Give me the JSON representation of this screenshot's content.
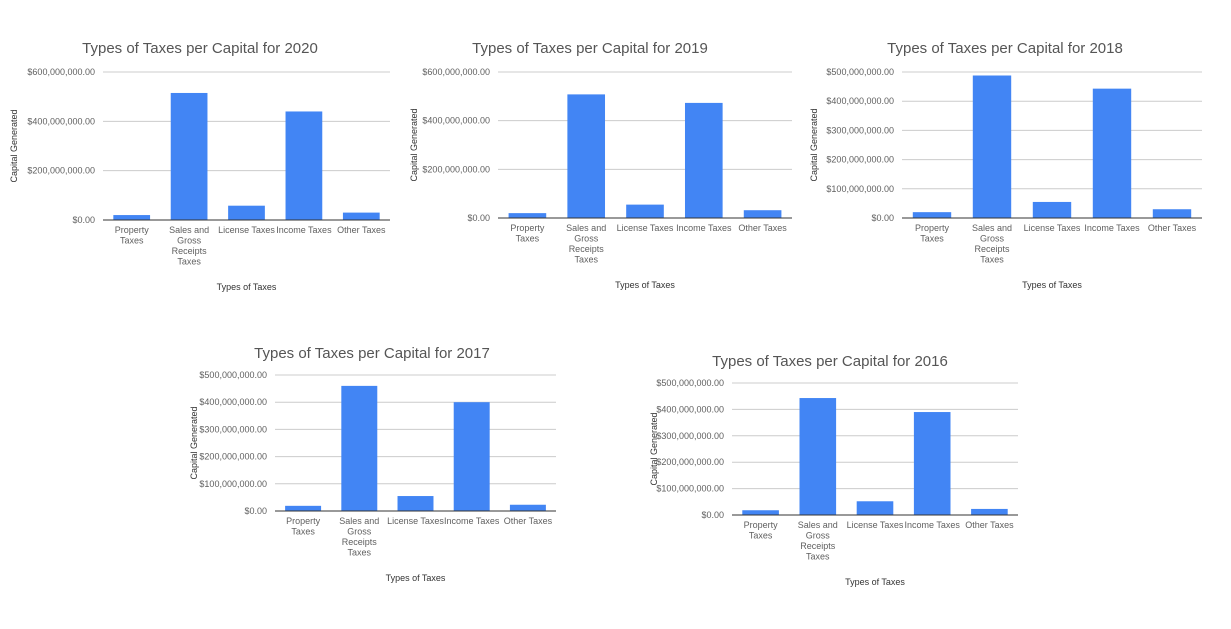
{
  "colors": {
    "bar": "#4285f4",
    "grid": "#cccccc",
    "axis": "#333333"
  },
  "chart_data": [
    {
      "type": "bar",
      "title": "Types of Taxes per Capital for 2020",
      "xlabel": "Types of Taxes",
      "ylabel": "Capital Generated",
      "categories": [
        "Property Taxes",
        "Sales and Gross Receipts Taxes",
        "License Taxes",
        "Income Taxes",
        "Other Taxes"
      ],
      "category_lines": [
        [
          "Property",
          "Taxes"
        ],
        [
          "Sales and",
          "Gross",
          "Receipts",
          "Taxes"
        ],
        [
          "License Taxes"
        ],
        [
          "Income Taxes"
        ],
        [
          "Other Taxes"
        ]
      ],
      "values": [
        20000000,
        515000000,
        58000000,
        440000000,
        30000000
      ],
      "ylim": [
        0,
        600000000
      ],
      "yticks": [
        0,
        200000000,
        400000000,
        600000000
      ],
      "ytick_labels": [
        "$0.00",
        "$200,000,000.00",
        "$400,000,000.00",
        "$600,000,000.00"
      ],
      "grid": true
    },
    {
      "type": "bar",
      "title": "Types of Taxes per Capital for 2019",
      "xlabel": "Types of Taxes",
      "ylabel": "Capital Generated",
      "categories": [
        "Property Taxes",
        "Sales and Gross Receipts Taxes",
        "License Taxes",
        "Income Taxes",
        "Other Taxes"
      ],
      "category_lines": [
        [
          "Property",
          "Taxes"
        ],
        [
          "Sales and",
          "Gross",
          "Receipts",
          "Taxes"
        ],
        [
          "License Taxes"
        ],
        [
          "Income Taxes"
        ],
        [
          "Other Taxes"
        ]
      ],
      "values": [
        20000000,
        508000000,
        55000000,
        473000000,
        32000000
      ],
      "ylim": [
        0,
        600000000
      ],
      "yticks": [
        0,
        200000000,
        400000000,
        600000000
      ],
      "ytick_labels": [
        "$0.00",
        "$200,000,000.00",
        "$400,000,000.00",
        "$600,000,000.00"
      ],
      "grid": true
    },
    {
      "type": "bar",
      "title": "Types of Taxes per Capital for 2018",
      "xlabel": "Types of Taxes",
      "ylabel": "Capital Generated",
      "categories": [
        "Property Taxes",
        "Sales and Gross Receipts Taxes",
        "License Taxes",
        "Income Taxes",
        "Other Taxes"
      ],
      "category_lines": [
        [
          "Property",
          "Taxes"
        ],
        [
          "Sales and",
          "Gross",
          "Receipts",
          "Taxes"
        ],
        [
          "License Taxes"
        ],
        [
          "Income Taxes"
        ],
        [
          "Other Taxes"
        ]
      ],
      "values": [
        20000000,
        488000000,
        55000000,
        443000000,
        30000000
      ],
      "ylim": [
        0,
        500000000
      ],
      "yticks": [
        0,
        100000000,
        200000000,
        300000000,
        400000000,
        500000000
      ],
      "ytick_labels": [
        "$0.00",
        "$100,000,000.00",
        "$200,000,000.00",
        "$300,000,000.00",
        "$400,000,000.00",
        "$500,000,000.00"
      ],
      "grid": true
    },
    {
      "type": "bar",
      "title": "Types of Taxes per Capital for 2017",
      "xlabel": "Types of Taxes",
      "ylabel": "Capital Generated",
      "categories": [
        "Property Taxes",
        "Sales and Gross Receipts Taxes",
        "License Taxes",
        "Income Taxes",
        "Other Taxes"
      ],
      "category_lines": [
        [
          "Property",
          "Taxes"
        ],
        [
          "Sales and",
          "Gross",
          "Receipts",
          "Taxes"
        ],
        [
          "License Taxes"
        ],
        [
          "Income Taxes"
        ],
        [
          "Other Taxes"
        ]
      ],
      "values": [
        19000000,
        460000000,
        55000000,
        400000000,
        23000000
      ],
      "ylim": [
        0,
        500000000
      ],
      "yticks": [
        0,
        100000000,
        200000000,
        300000000,
        400000000,
        500000000
      ],
      "ytick_labels": [
        "$0.00",
        "$100,000,000.00",
        "$200,000,000.00",
        "$300,000,000.00",
        "$400,000,000.00",
        "$500,000,000.00"
      ],
      "grid": true
    },
    {
      "type": "bar",
      "title": "Types of Taxes per Capital for 2016",
      "xlabel": "Types of Taxes",
      "ylabel": "Capital Generated",
      "categories": [
        "Property Taxes",
        "Sales and Gross Receipts Taxes",
        "License Taxes",
        "Income Taxes",
        "Other Taxes"
      ],
      "category_lines": [
        [
          "Property",
          "Taxes"
        ],
        [
          "Sales and",
          "Gross",
          "Receipts",
          "Taxes"
        ],
        [
          "License Taxes"
        ],
        [
          "Income Taxes"
        ],
        [
          "Other Taxes"
        ]
      ],
      "values": [
        18000000,
        443000000,
        52000000,
        390000000,
        23000000
      ],
      "ylim": [
        0,
        500000000
      ],
      "yticks": [
        0,
        100000000,
        200000000,
        300000000,
        400000000,
        500000000
      ],
      "ytick_labels": [
        "$0.00",
        "$100,000,000.00",
        "$200,000,000.00",
        "$300,000,000.00",
        "$400,000,000.00",
        "$500,000,000.00"
      ],
      "grid": true
    }
  ]
}
